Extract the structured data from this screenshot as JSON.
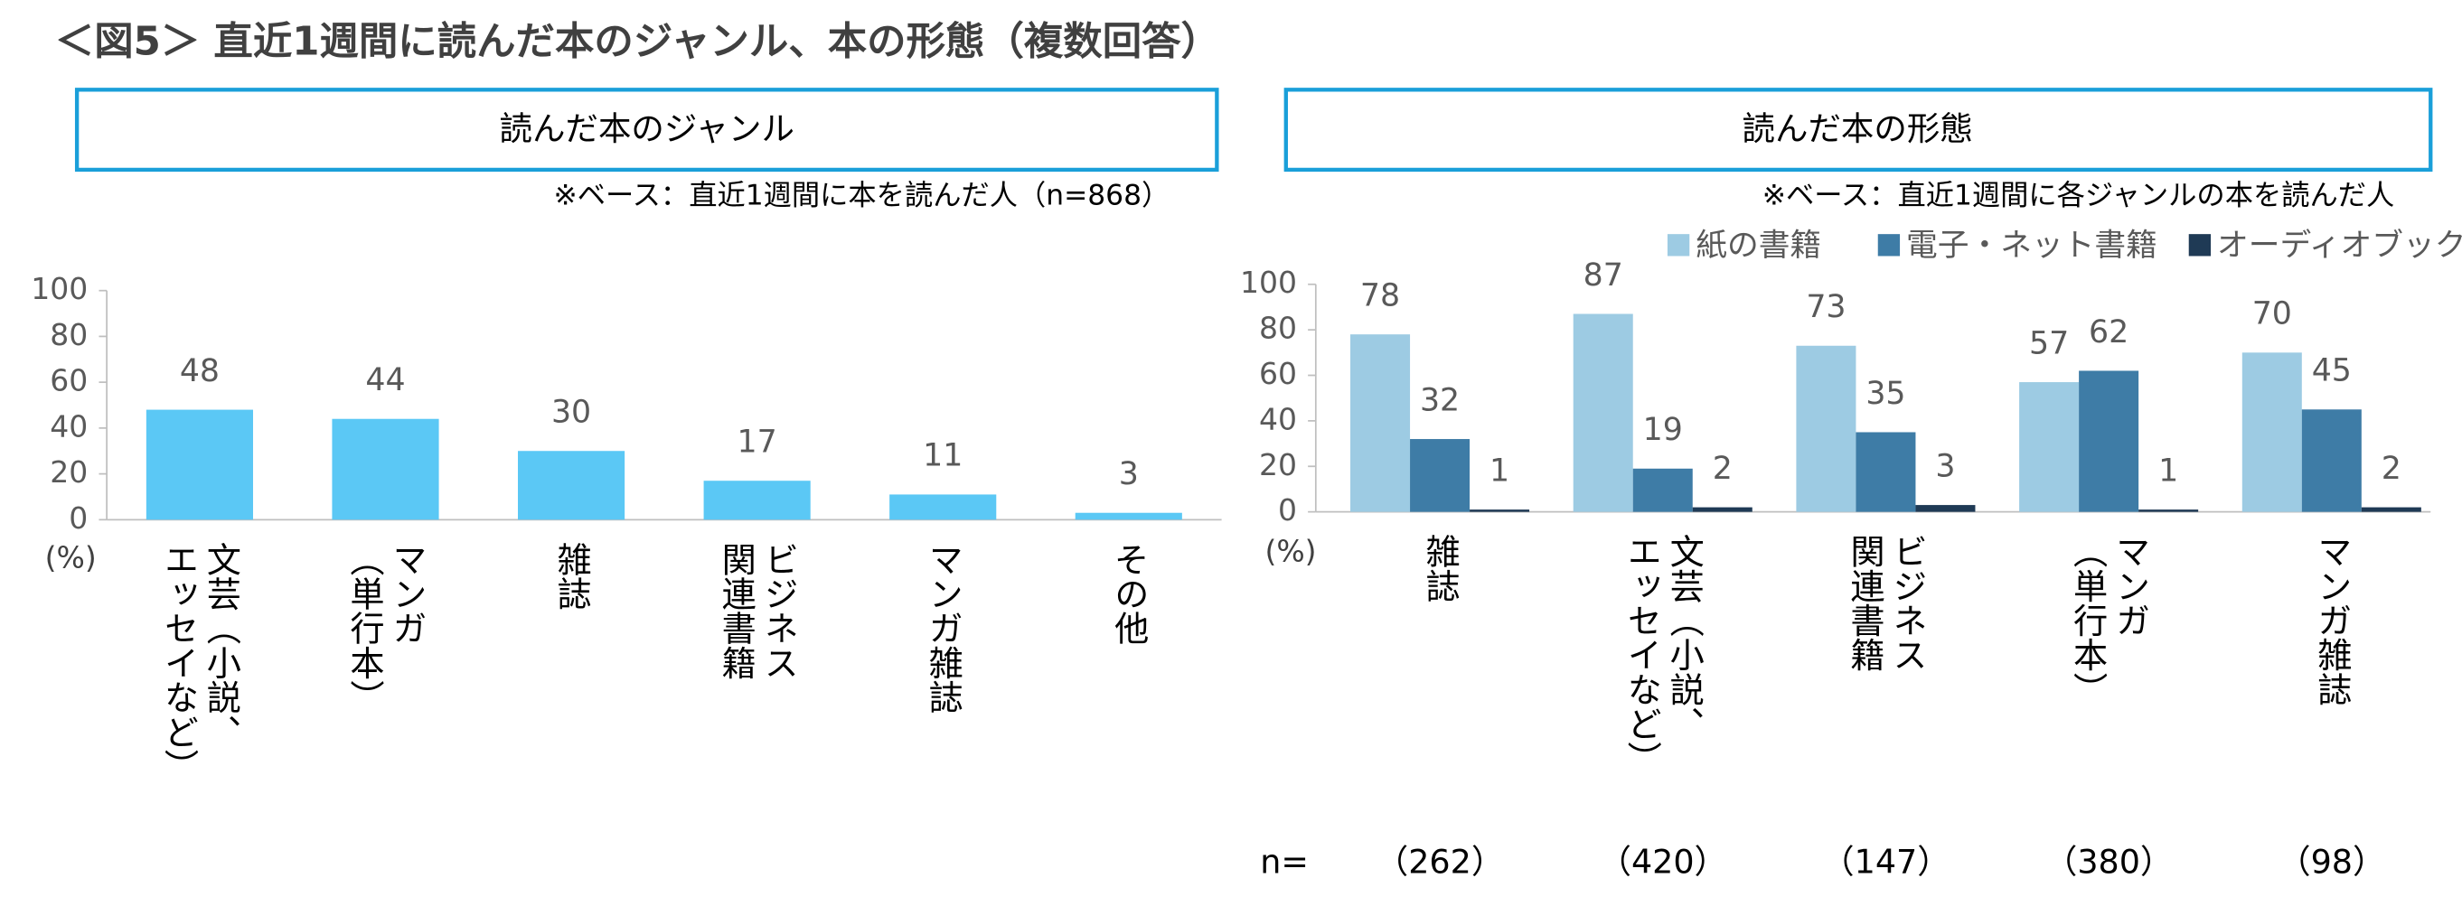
{
  "title": "＜図5＞ 直近1週間に読んだ本のジャンル、本の形態（複数回答）",
  "chart_data": [
    {
      "type": "bar",
      "panel_title": "読んだ本のジャンル",
      "note": "※ベース：直近1週間に本を読んだ人（n=868）",
      "unit": "(%)",
      "categories": [
        [
          "文芸（小説、",
          "エッセイなど）"
        ],
        [
          "マンガ",
          "（単行本）"
        ],
        [
          "雑誌"
        ],
        [
          "ビジネス",
          "関連書籍"
        ],
        [
          "マンガ雑誌"
        ],
        [
          "その他"
        ]
      ],
      "values": [
        48,
        44,
        30,
        17,
        11,
        3
      ],
      "color": "#5bc8f5",
      "ylim": [
        0,
        100
      ],
      "yticks": [
        0,
        20,
        40,
        60,
        80,
        100
      ]
    },
    {
      "type": "grouped_bar",
      "panel_title": "読んだ本の形態",
      "note": "※ベース：直近1週間に各ジャンルの本を読んだ人",
      "unit": "(%)",
      "categories": [
        [
          "雑誌"
        ],
        [
          "文芸（小説、",
          "エッセイなど）"
        ],
        [
          "ビジネス",
          "関連書籍"
        ],
        [
          "マンガ",
          "（単行本）"
        ],
        [
          "マンガ雑誌"
        ]
      ],
      "series": [
        {
          "name": "紙の書籍",
          "color": "#9dcbe3",
          "values": [
            78,
            87,
            73,
            57,
            70
          ]
        },
        {
          "name": "電子・ネット書籍",
          "color": "#3e7ca6",
          "values": [
            32,
            19,
            35,
            62,
            45
          ]
        },
        {
          "name": "オーディオブック",
          "color": "#1f3a55",
          "values": [
            1,
            2,
            3,
            1,
            2
          ]
        }
      ],
      "n_label": "n=",
      "n_values": [
        "（262）",
        "（420）",
        "（147）",
        "（380）",
        "（98）"
      ],
      "ylim": [
        0,
        100
      ],
      "yticks": [
        0,
        20,
        40,
        60,
        80,
        100
      ]
    }
  ]
}
